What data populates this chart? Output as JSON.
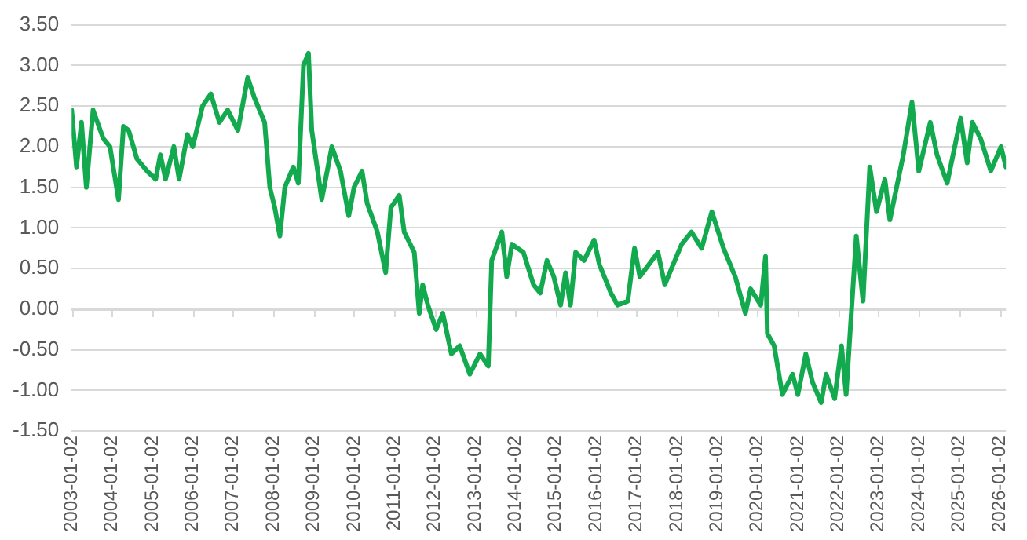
{
  "chart_data": {
    "type": "line",
    "grid": "y",
    "legend": false,
    "marker": "none",
    "line_style": "solid",
    "xlim": [
      "2003-01-02",
      "2026-03-01"
    ],
    "xticks": [
      "2003-01-02",
      "2004-01-02",
      "2005-01-02",
      "2006-01-02",
      "2007-01-02",
      "2008-01-02",
      "2009-01-02",
      "2010-01-02",
      "2011-01-02",
      "2012-01-02",
      "2013-01-02",
      "2014-01-02",
      "2015-01-02",
      "2016-01-02",
      "2017-01-02",
      "2018-01-02",
      "2019-01-02",
      "2020-01-02",
      "2021-01-02",
      "2022-01-02",
      "2023-01-02",
      "2024-01-02",
      "2025-01-02",
      "2026-01-02"
    ],
    "ylim": [
      -1.5,
      3.5
    ],
    "yticks": [
      {
        "value": -1.5,
        "label": "-1.50"
      },
      {
        "value": -1,
        "label": "-1.00"
      },
      {
        "value": -0.5,
        "label": "-0.50"
      },
      {
        "value": 0,
        "label": "0.00"
      },
      {
        "value": 0.5,
        "label": "0.50"
      },
      {
        "value": 1,
        "label": "1.00"
      },
      {
        "value": 1.5,
        "label": "1.50"
      },
      {
        "value": 2,
        "label": "2.00"
      },
      {
        "value": 2.5,
        "label": "2.50"
      },
      {
        "value": 3,
        "label": "3.00"
      },
      {
        "value": 3.5,
        "label": "3.50"
      }
    ],
    "x": [
      "2003-01-02",
      "2003-02-15",
      "2003-04-01",
      "2003-05-15",
      "2003-07-15",
      "2003-10-15",
      "2003-12-15",
      "2004-03-01",
      "2004-04-15",
      "2004-06-01",
      "2004-08-15",
      "2004-11-15",
      "2005-02-01",
      "2005-03-15",
      "2005-05-01",
      "2005-07-15",
      "2005-09-01",
      "2005-11-15",
      "2006-01-02",
      "2006-04-01",
      "2006-06-15",
      "2006-09-01",
      "2006-11-15",
      "2007-02-15",
      "2007-05-15",
      "2007-07-15",
      "2007-10-15",
      "2007-12-01",
      "2008-01-15",
      "2008-03-01",
      "2008-04-15",
      "2008-07-01",
      "2008-08-15",
      "2008-10-01",
      "2008-11-15",
      "2008-12-15",
      "2009-02-01",
      "2009-03-15",
      "2009-06-15",
      "2009-09-01",
      "2009-11-15",
      "2010-01-02",
      "2010-03-15",
      "2010-05-01",
      "2010-08-01",
      "2010-10-15",
      "2010-12-01",
      "2011-02-15",
      "2011-04-01",
      "2011-07-01",
      "2011-08-15",
      "2011-09-15",
      "2011-11-01",
      "2012-01-15",
      "2012-03-15",
      "2012-06-01",
      "2012-08-15",
      "2012-11-15",
      "2013-02-15",
      "2013-05-01",
      "2013-06-01",
      "2013-09-01",
      "2013-10-15",
      "2013-12-01",
      "2014-03-15",
      "2014-06-15",
      "2014-08-15",
      "2014-10-15",
      "2014-12-15",
      "2015-02-15",
      "2015-04-01",
      "2015-05-15",
      "2015-07-01",
      "2015-09-15",
      "2015-12-15",
      "2016-02-01",
      "2016-05-15",
      "2016-07-15",
      "2016-10-15",
      "2016-12-15",
      "2017-02-01",
      "2017-07-15",
      "2017-09-15",
      "2017-12-15",
      "2018-02-15",
      "2018-05-15",
      "2018-08-15",
      "2018-11-15",
      "2019-03-01",
      "2019-06-15",
      "2019-09-15",
      "2019-11-01",
      "2020-02-01",
      "2020-03-15",
      "2020-04-01",
      "2020-06-01",
      "2020-08-15",
      "2020-11-15",
      "2021-01-02",
      "2021-03-15",
      "2021-05-15",
      "2021-08-01",
      "2021-09-15",
      "2021-12-01",
      "2022-02-01",
      "2022-03-15",
      "2022-05-01",
      "2022-06-15",
      "2022-08-15",
      "2022-10-15",
      "2022-12-15",
      "2023-03-01",
      "2023-04-15",
      "2023-08-15",
      "2023-11-01",
      "2024-01-02",
      "2024-04-15",
      "2024-06-15",
      "2024-09-15",
      "2025-01-15",
      "2025-03-15",
      "2025-05-01",
      "2025-07-15",
      "2025-10-15",
      "2026-01-15",
      "2026-03-01"
    ],
    "series": [
      {
        "color": "#13a94f",
        "values": [
          2.45,
          1.75,
          2.3,
          1.5,
          2.45,
          2.1,
          2.0,
          1.35,
          2.25,
          2.2,
          1.85,
          1.7,
          1.6,
          1.9,
          1.6,
          2.0,
          1.6,
          2.15,
          2.0,
          2.5,
          2.65,
          2.3,
          2.45,
          2.2,
          2.85,
          2.6,
          2.3,
          1.5,
          1.25,
          0.9,
          1.5,
          1.75,
          1.55,
          3.0,
          3.15,
          2.2,
          1.75,
          1.35,
          2.0,
          1.7,
          1.15,
          1.5,
          1.7,
          1.3,
          0.95,
          0.45,
          1.25,
          1.4,
          0.95,
          0.7,
          -0.05,
          0.3,
          0.05,
          -0.25,
          -0.05,
          -0.55,
          -0.45,
          -0.8,
          -0.55,
          -0.7,
          0.6,
          0.95,
          0.4,
          0.8,
          0.7,
          0.3,
          0.2,
          0.6,
          0.4,
          0.05,
          0.45,
          0.05,
          0.7,
          0.6,
          0.85,
          0.55,
          0.2,
          0.05,
          0.1,
          0.75,
          0.4,
          0.7,
          0.3,
          0.6,
          0.8,
          0.95,
          0.75,
          1.2,
          0.75,
          0.4,
          -0.05,
          0.25,
          0.05,
          0.65,
          -0.3,
          -0.45,
          -1.05,
          -0.8,
          -1.05,
          -0.55,
          -0.9,
          -1.15,
          -0.8,
          -1.1,
          -0.45,
          -1.05,
          -0.05,
          0.9,
          0.1,
          1.75,
          1.2,
          1.6,
          1.1,
          1.9,
          2.55,
          1.7,
          2.3,
          1.9,
          1.55,
          2.35,
          1.8,
          2.3,
          2.1,
          1.7,
          2.0,
          1.75
        ]
      }
    ]
  }
}
